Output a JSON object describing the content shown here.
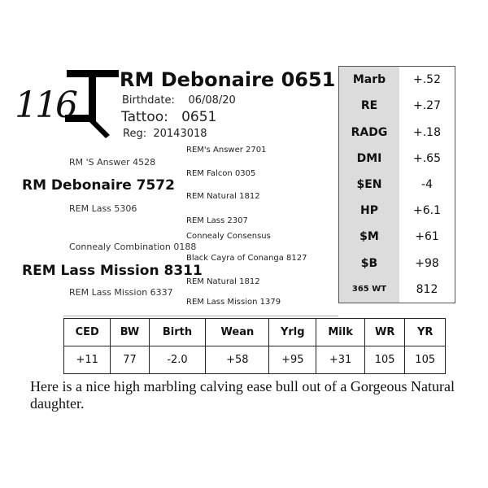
{
  "lot_number": "116",
  "animal": {
    "name": "RM Debonaire 0651",
    "birthdate_label": "Birthdate:",
    "birthdate": "06/08/20",
    "tattoo_label": "Tattoo:",
    "tattoo": "0651",
    "reg_label": "Reg:",
    "reg": "20143018"
  },
  "pedigree": {
    "sire": "RM Debonaire 7572",
    "sire_sire": "RM 'S Answer 4528",
    "sire_dam": "REM Lass 5306",
    "dam": "REM Lass Mission 8311",
    "dam_sire": "Connealy Combination 0188",
    "dam_dam": "REM Lass Mission 6337",
    "ggp": [
      "REM's Answer 2701",
      "REM Falcon 0305",
      "REM Natural 1812",
      "REM Lass 2307",
      "Connealy Consensus",
      "Black Cayra of Conanga 8127",
      "REM Natural 1812",
      "REM Lass Mission 1379"
    ]
  },
  "epd_side": [
    {
      "label": "Marb",
      "value": "+.52"
    },
    {
      "label": "RE",
      "value": "+.27"
    },
    {
      "label": "RADG",
      "value": "+.18"
    },
    {
      "label": "DMI",
      "value": "+.65"
    },
    {
      "label": "$EN",
      "value": "-4"
    },
    {
      "label": "HP",
      "value": "+6.1"
    },
    {
      "label": "$M",
      "value": "+61"
    },
    {
      "label": "$B",
      "value": "+98"
    },
    {
      "label": "365 WT",
      "value": "812"
    }
  ],
  "epd_table": {
    "headers": [
      "CED",
      "BW",
      "Birth",
      "Wean",
      "Yrlg",
      "Milk",
      "WR",
      "YR"
    ],
    "values": [
      "+11",
      "77",
      "-2.0",
      "+58",
      "+95",
      "+31",
      "105",
      "105"
    ]
  },
  "description": "Here is a nice high marbling calving ease bull out of a Gorgeous Natural daughter."
}
